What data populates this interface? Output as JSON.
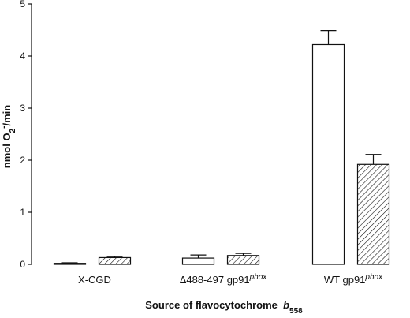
{
  "chart_data": {
    "type": "bar",
    "xlabel": "Source of flavocytochrome b558",
    "ylabel": "nmol O2-/min",
    "ylim": [
      0,
      5
    ],
    "yticks": [
      "0",
      "1",
      "2",
      "3",
      "4",
      "5"
    ],
    "grid": false,
    "categories": [
      "X-CGD",
      "Δ488-497 gp91phox",
      "WT gp91phox"
    ],
    "series": [
      {
        "fill": "open",
        "values": [
          0.02,
          0.12,
          4.22
        ],
        "errors": [
          0.01,
          0.06,
          0.27
        ]
      },
      {
        "fill": "hatched",
        "values": [
          0.13,
          0.17,
          1.92
        ],
        "errors": [
          0.02,
          0.04,
          0.19
        ]
      }
    ]
  }
}
